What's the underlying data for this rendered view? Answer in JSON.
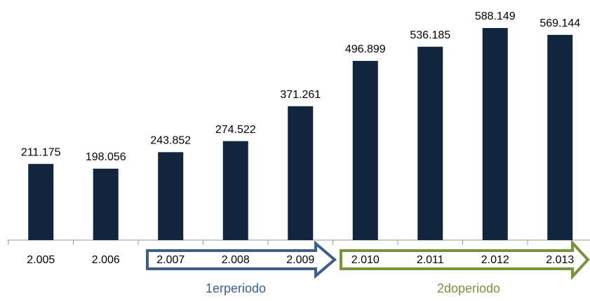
{
  "chart_data": {
    "type": "bar",
    "categories": [
      "2.005",
      "2.006",
      "2.007",
      "2.008",
      "2.009",
      "2.010",
      "2.011",
      "2.012",
      "2.013"
    ],
    "values": [
      211175,
      198056,
      243852,
      274522,
      371261,
      496899,
      536185,
      588149,
      569144
    ],
    "value_labels": [
      "211.175",
      "198.056",
      "243.852",
      "274.522",
      "371.261",
      "496.899",
      "536.185",
      "588.149",
      "569.144"
    ],
    "color": "#12253f",
    "annotations": [
      "1erperiodo",
      "2doperiodo"
    ]
  }
}
